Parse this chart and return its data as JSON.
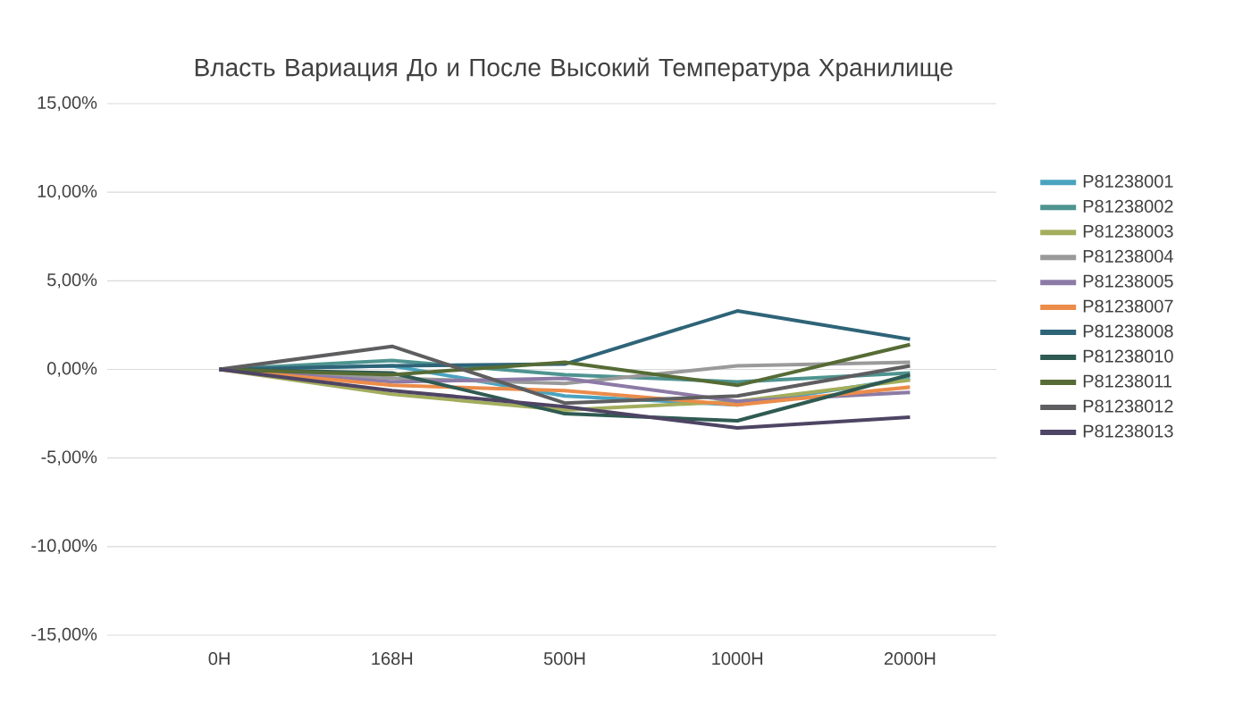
{
  "chart_data": {
    "type": "line",
    "title": "Власть Вариация До и После Высокий Температура Хранилище",
    "categories": [
      "0H",
      "168H",
      "500H",
      "1000H",
      "2000H"
    ],
    "ylim": [
      -15,
      15
    ],
    "yticks": [
      {
        "value": -15,
        "label": "-15,00%"
      },
      {
        "value": -10,
        "label": "-10,00%"
      },
      {
        "value": -5,
        "label": "-5,00%"
      },
      {
        "value": 0,
        "label": "0,00%"
      },
      {
        "value": 5,
        "label": "5,00%"
      },
      {
        "value": 10,
        "label": "10,00%"
      },
      {
        "value": 15,
        "label": "15,00%"
      }
    ],
    "grid": "y",
    "legend": "right",
    "marker": "none",
    "line_style": "solid",
    "series": [
      {
        "name": "P81238001",
        "color": "#4aa3bf",
        "values": [
          0,
          0.2,
          -1.5,
          -2.0,
          -0.5
        ]
      },
      {
        "name": "P81238002",
        "color": "#4e9490",
        "values": [
          0,
          0.5,
          -0.3,
          -0.7,
          -0.2
        ]
      },
      {
        "name": "P81238003",
        "color": "#a3ad5c",
        "values": [
          0,
          -1.4,
          -2.3,
          -1.8,
          -0.6
        ]
      },
      {
        "name": "P81238004",
        "color": "#9a9a9a",
        "values": [
          0,
          -0.5,
          -0.8,
          0.2,
          0.4
        ]
      },
      {
        "name": "P81238005",
        "color": "#8c7aa6",
        "values": [
          0,
          -0.7,
          -0.5,
          -1.8,
          -1.3
        ]
      },
      {
        "name": "P81238007",
        "color": "#eb8c4a",
        "values": [
          0,
          -0.9,
          -1.2,
          -2.0,
          -1.0
        ]
      },
      {
        "name": "P81238008",
        "color": "#2e6478",
        "values": [
          0,
          0.2,
          0.3,
          3.3,
          1.7
        ]
      },
      {
        "name": "P81238010",
        "color": "#2f5a52",
        "values": [
          0,
          -0.2,
          -2.5,
          -2.9,
          -0.3
        ]
      },
      {
        "name": "P81238011",
        "color": "#566b35",
        "values": [
          0,
          -0.3,
          0.4,
          -0.9,
          1.4
        ]
      },
      {
        "name": "P81238012",
        "color": "#5e5e60",
        "values": [
          0,
          1.3,
          -1.9,
          -1.5,
          0.2
        ]
      },
      {
        "name": "P81238013",
        "color": "#4e4463",
        "values": [
          0,
          -1.2,
          -2.1,
          -3.3,
          -2.7
        ]
      }
    ]
  }
}
